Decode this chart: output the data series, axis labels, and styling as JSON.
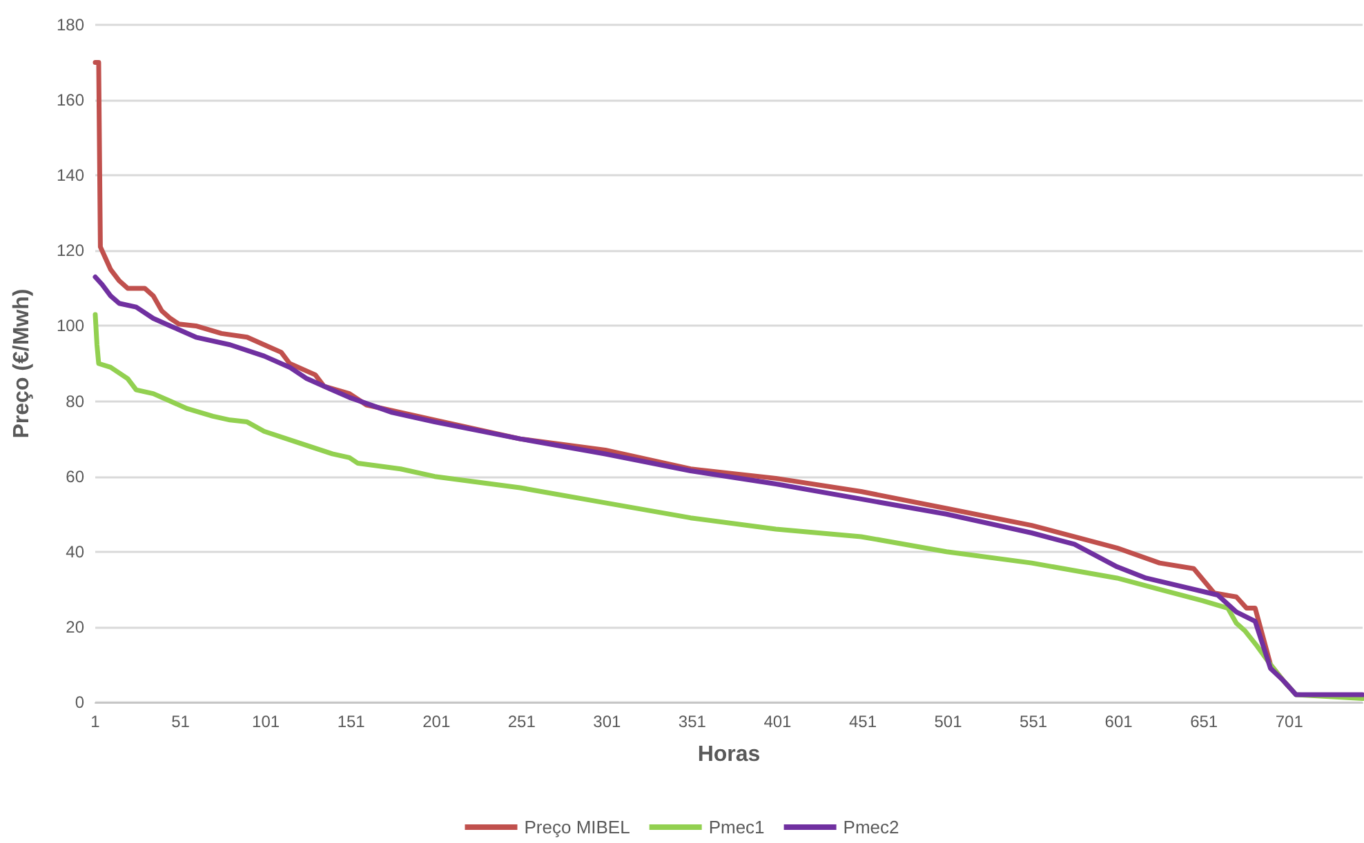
{
  "chart_data": {
    "type": "line",
    "xlabel": "Horas",
    "ylabel": "Preço (€/Mwh)",
    "xlim": [
      1,
      744
    ],
    "xticks": [
      1,
      51,
      101,
      151,
      201,
      251,
      301,
      351,
      401,
      451,
      501,
      551,
      601,
      651,
      701
    ],
    "ylim": [
      0,
      180
    ],
    "yticks": [
      0,
      20,
      40,
      60,
      80,
      100,
      120,
      140,
      160,
      180
    ],
    "grid": "y",
    "legend": "bottom",
    "marker": "none",
    "line_style": "solid",
    "series": [
      {
        "name": "Preço MIBEL",
        "color": "#c0504d",
        "x": [
          1,
          3,
          4,
          7,
          10,
          15,
          20,
          30,
          35,
          40,
          45,
          50,
          60,
          75,
          90,
          100,
          110,
          115,
          125,
          130,
          135,
          150,
          160,
          180,
          200,
          250,
          300,
          350,
          400,
          450,
          500,
          550,
          600,
          625,
          645,
          657,
          670,
          676,
          681,
          690,
          697,
          701
        ],
        "values": [
          170,
          170,
          121,
          118,
          115,
          112,
          110,
          110,
          108,
          104,
          102,
          100.5,
          100,
          98,
          97,
          95,
          93,
          90,
          88,
          87,
          84,
          82,
          79,
          77,
          75,
          70,
          67,
          62,
          59.5,
          56,
          51.5,
          47,
          41,
          37,
          35.5,
          29,
          28,
          25,
          25,
          10,
          6,
          4
        ]
      },
      {
        "name": "Pmec1",
        "color": "#92d050",
        "x": [
          1,
          2,
          3,
          10,
          20,
          25,
          35,
          45,
          55,
          70,
          80,
          90,
          100,
          120,
          140,
          150,
          155,
          180,
          200,
          250,
          300,
          350,
          400,
          450,
          500,
          550,
          600,
          625,
          650,
          665,
          670,
          675,
          682,
          690,
          697,
          701,
          705,
          744
        ],
        "values": [
          103,
          95,
          90,
          89,
          86,
          83,
          82,
          80,
          78,
          76,
          75,
          74.5,
          72,
          69,
          66,
          65,
          63.5,
          62,
          60,
          57,
          53,
          49,
          46,
          44,
          40,
          37,
          33,
          30,
          27,
          25,
          21,
          19,
          15,
          10,
          6,
          4,
          2,
          1
        ]
      },
      {
        "name": "Pmec2",
        "color": "#7030a0",
        "x": [
          1,
          5,
          10,
          15,
          25,
          35,
          45,
          60,
          80,
          100,
          115,
          125,
          140,
          150,
          175,
          200,
          250,
          300,
          350,
          400,
          450,
          500,
          550,
          575,
          600,
          617,
          659,
          670,
          681,
          690,
          697,
          701,
          705,
          744
        ],
        "values": [
          113,
          111,
          108,
          106,
          105,
          102,
          100,
          97,
          95,
          92,
          89,
          86,
          83,
          81,
          77,
          74.5,
          70,
          66,
          61.5,
          58,
          54,
          50,
          45,
          42,
          36,
          33,
          28.5,
          24,
          21.5,
          9,
          6,
          4,
          2,
          2
        ]
      }
    ]
  }
}
